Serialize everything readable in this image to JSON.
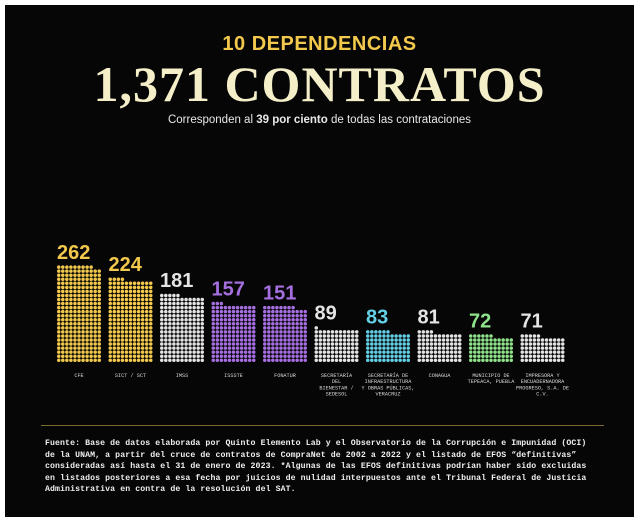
{
  "header": {
    "kicker": "10 DEPENDENCIAS",
    "headline": "1,371 CONTRATOS",
    "subtitle_pre": "Corresponden al ",
    "subtitle_bold": "39 por ciento",
    "subtitle_post": " de todas las contrataciones"
  },
  "colors": {
    "background": "#060606",
    "kicker": "#f2c94c",
    "headline": "#f4efc8",
    "rule": "#7a6a2c"
  },
  "chart_data": {
    "type": "bar",
    "title": "1,371 CONTRATOS",
    "categories": [
      "CFE",
      "SICT / SCT",
      "IMSS",
      "ISSSTE",
      "FONATUR",
      "SECRETARÍA DEL BIENESTAR / SEDESOL",
      "SECRETARÍA DE INFRAESTRUCTURA Y OBRAS PÚBLICAS, VERACRUZ",
      "CONAGUA",
      "MUNICIPIO DE TEPEACA, PUEBLA",
      "IMPRESORA Y ENCUADERNADORA PROGRESO, S.A. DE C.V."
    ],
    "label_lines": [
      [
        "CFE"
      ],
      [
        "SICT / SCT"
      ],
      [
        "IMSS"
      ],
      [
        "ISSSTE"
      ],
      [
        "FONATUR"
      ],
      [
        "SECRETARÍA",
        "DEL",
        "BIENESTAR /",
        "SEDESOL"
      ],
      [
        "SECRETARÍA DE",
        "INFRAESTRUCTURA",
        "Y OBRAS PÚBLICAS,",
        "VERACRUZ"
      ],
      [
        "CONAGUA"
      ],
      [
        "MUNICIPIO DE",
        "TEPEACA, PUEBLA"
      ],
      [
        "IMPRESORA Y",
        "ENCUADERNADORA",
        "PROGRESO, S.A. DE",
        "C.V."
      ]
    ],
    "values": [
      262,
      224,
      181,
      157,
      151,
      89,
      83,
      81,
      72,
      71
    ],
    "value_labels": [
      "262",
      "224",
      "181",
      "157",
      "151",
      "89",
      "83",
      "81",
      "72",
      "71"
    ],
    "colors": [
      "#f2c94c",
      "#f2c94c",
      "#e4e4e4",
      "#a66fe0",
      "#a66fe0",
      "#e4e4e4",
      "#64d0e8",
      "#e4e4e4",
      "#8fe38a",
      "#e4e4e4"
    ],
    "unit": "contratos, un punto por contrato",
    "grid": false,
    "legend": "none"
  },
  "source_note": "Fuente: Base de datos elaborada por Quinto Elemento Lab y el Observatorio de la Corrupción e Impunidad (OCI) de la UNAM, a partir del cruce de contratos de CompraNet de 2002 a 2022 y el listado de EFOS “definitivas” consideradas así hasta el 31 de enero de 2023. *Algunas de las EFOS definitivas podrían haber sido excluidas en listados posteriores a esa fecha por juicios de nulidad interpuestos ante el Tribunal Federal de Justicia Administrativa en contra de la resolución del SAT."
}
